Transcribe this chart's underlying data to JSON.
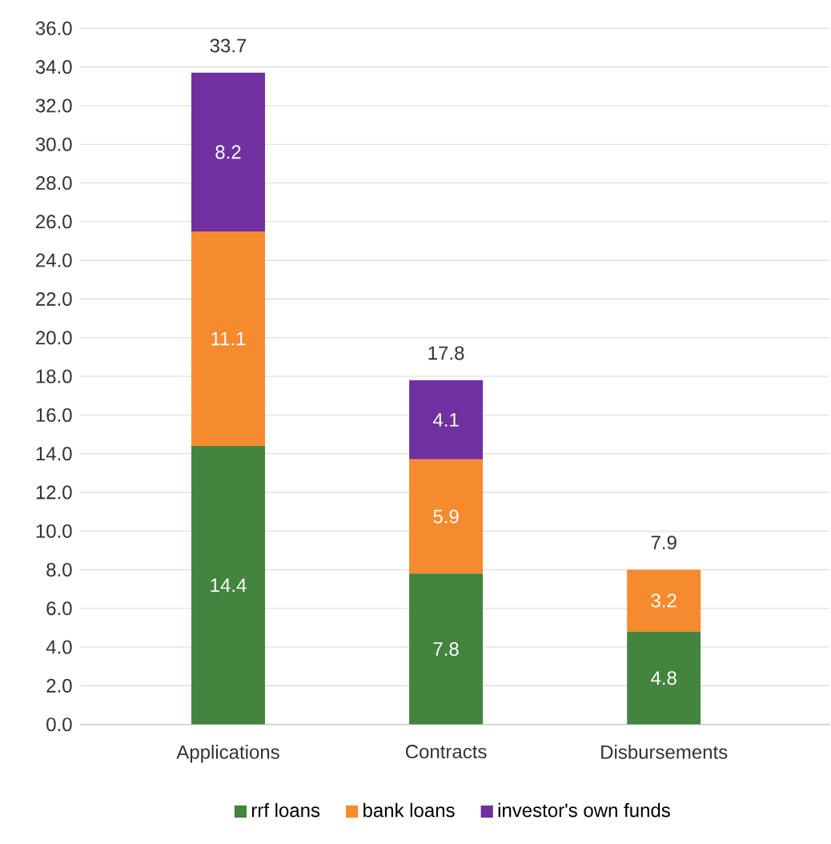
{
  "chart_data": {
    "type": "bar",
    "stacked": true,
    "categories": [
      "Applications",
      "Contracts",
      "Disbursements"
    ],
    "series": [
      {
        "name": "rrf loans",
        "color": "#43843f",
        "values": [
          14.4,
          7.8,
          4.8
        ],
        "value_labels": [
          "14.4",
          "7.8",
          "4.8"
        ]
      },
      {
        "name": "bank loans",
        "color": "#f58a2e",
        "values": [
          11.1,
          5.9,
          3.2
        ],
        "value_labels": [
          "11.1",
          "5.9",
          "3.2"
        ]
      },
      {
        "name": "investor's own funds",
        "color": "#7030a0",
        "values": [
          8.2,
          4.1,
          null
        ],
        "value_labels": [
          "8.2",
          "4.1",
          null
        ]
      }
    ],
    "totals": [
      "33.7",
      "17.8",
      "7.9"
    ],
    "ylim": [
      0,
      36
    ],
    "yticks": [
      {
        "value": 0,
        "label": "0.0"
      },
      {
        "value": 2,
        "label": "2.0"
      },
      {
        "value": 4,
        "label": "4.0"
      },
      {
        "value": 6,
        "label": "6.0"
      },
      {
        "value": 8,
        "label": "8.0"
      },
      {
        "value": 10,
        "label": "10.0"
      },
      {
        "value": 12,
        "label": "12.0"
      },
      {
        "value": 14,
        "label": "14.0"
      },
      {
        "value": 16,
        "label": "16.0"
      },
      {
        "value": 18,
        "label": "18.0"
      },
      {
        "value": 20,
        "label": "20.0"
      },
      {
        "value": 22,
        "label": "22.0"
      },
      {
        "value": 24,
        "label": "24.0"
      },
      {
        "value": 26,
        "label": "26.0"
      },
      {
        "value": 28,
        "label": "28.0"
      },
      {
        "value": 30,
        "label": "30.0"
      },
      {
        "value": 32,
        "label": "32.0"
      },
      {
        "value": 34,
        "label": "34.0"
      },
      {
        "value": 36,
        "label": "36.0"
      }
    ],
    "grid": "y",
    "legend": "bottom"
  }
}
